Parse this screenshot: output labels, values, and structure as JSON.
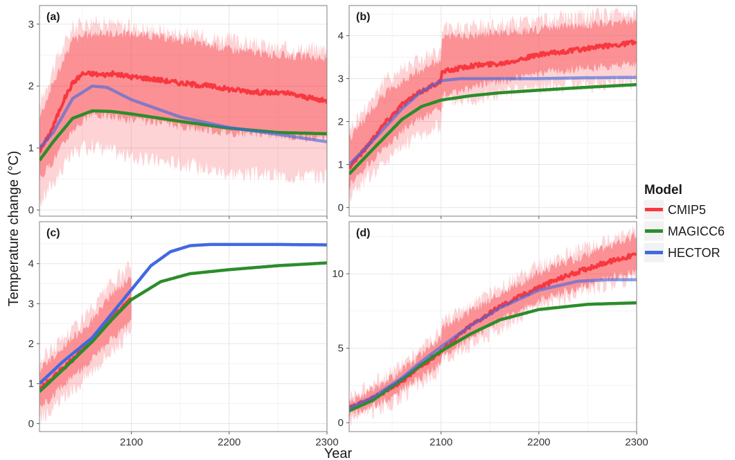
{
  "figure": {
    "xlabel": "Year",
    "ylabel": "Temperature change (°C)",
    "legend_title": "Model",
    "legend_position": "right"
  },
  "chart_data": [
    {
      "type": "line",
      "panel": "(a)",
      "xlim": [
        2006,
        2300
      ],
      "ylim": [
        -0.1,
        3.3
      ],
      "x_ticks": [
        2100,
        2200,
        2300
      ],
      "x_tick_labels": [
        "",
        "",
        ""
      ],
      "y_ticks": [
        0,
        1,
        2,
        3
      ],
      "y_tick_labels": [
        "0",
        "1",
        "2",
        "3"
      ],
      "grid": true,
      "series": [
        {
          "name": "CMIP5",
          "color": "#f8373f",
          "kind": "noisy",
          "x": [
            2006,
            2012,
            2020,
            2030,
            2040,
            2050,
            2060,
            2070,
            2080,
            2100,
            2120,
            2150,
            2180,
            2200,
            2230,
            2260,
            2300
          ],
          "values": [
            0.95,
            1.1,
            1.35,
            1.75,
            2.05,
            2.2,
            2.2,
            2.18,
            2.2,
            2.15,
            2.12,
            2.05,
            2.0,
            1.95,
            1.9,
            1.88,
            1.75
          ],
          "band": {
            "x": [
              2006,
              2020,
              2040,
              2060,
              2100,
              2150,
              2200,
              2250,
              2300
            ],
            "lower": [
              0.5,
              0.8,
              1.3,
              1.55,
              1.45,
              1.35,
              1.25,
              1.2,
              1.15
            ],
            "upper": [
              1.5,
              2.05,
              2.75,
              2.85,
              2.85,
              2.75,
              2.6,
              2.5,
              2.45
            ]
          },
          "outer_band": {
            "x": [
              2006,
              2020,
              2040,
              2060,
              2100,
              2150,
              2200,
              2250,
              2300
            ],
            "lower": [
              0.1,
              0.45,
              0.9,
              1.05,
              0.85,
              0.75,
              0.6,
              0.55,
              0.55
            ],
            "upper": [
              1.7,
              2.3,
              2.95,
              3.05,
              2.95,
              2.85,
              2.75,
              2.6,
              2.6
            ]
          }
        },
        {
          "name": "MAGICC6",
          "color": "#2b8d2b",
          "kind": "smooth",
          "x": [
            2006,
            2020,
            2040,
            2060,
            2080,
            2100,
            2150,
            2200,
            2250,
            2300
          ],
          "values": [
            0.8,
            1.1,
            1.48,
            1.6,
            1.59,
            1.55,
            1.43,
            1.32,
            1.25,
            1.23
          ]
        },
        {
          "name": "HECTOR",
          "color": "#4169e1",
          "kind": "smooth",
          "x": [
            2006,
            2020,
            2040,
            2060,
            2075,
            2100,
            2150,
            2200,
            2250,
            2300
          ],
          "values": [
            1.0,
            1.25,
            1.8,
            2.0,
            1.98,
            1.78,
            1.5,
            1.33,
            1.22,
            1.1
          ]
        }
      ]
    },
    {
      "type": "line",
      "panel": "(b)",
      "xlim": [
        2006,
        2300
      ],
      "ylim": [
        -0.2,
        4.7
      ],
      "x_ticks": [
        2100,
        2200,
        2300
      ],
      "x_tick_labels": [
        "",
        "",
        ""
      ],
      "y_ticks": [
        0,
        1,
        2,
        3,
        4
      ],
      "y_tick_labels": [
        "0",
        "1",
        "2",
        "3",
        "4"
      ],
      "grid": true,
      "series": [
        {
          "name": "CMIP5",
          "color": "#f8373f",
          "kind": "noisy",
          "x": [
            2006,
            2020,
            2040,
            2060,
            2080,
            2100,
            2101,
            2130,
            2160,
            2200,
            2250,
            2300
          ],
          "values": [
            0.95,
            1.3,
            1.9,
            2.4,
            2.7,
            2.95,
            3.15,
            3.3,
            3.35,
            3.55,
            3.7,
            3.85
          ],
          "band": {
            "x": [
              2006,
              2040,
              2070,
              2100,
              2101,
              2150,
              2200,
              2250,
              2300
            ],
            "lower": [
              0.5,
              1.35,
              1.95,
              2.3,
              2.6,
              2.9,
              3.1,
              3.25,
              3.35
            ],
            "upper": [
              1.6,
              2.6,
              3.1,
              3.45,
              3.95,
              4.05,
              4.15,
              4.25,
              4.35
            ]
          },
          "outer_band": {
            "x": [
              2006,
              2040,
              2070,
              2100,
              2101,
              2150,
              2200,
              2250,
              2300
            ],
            "lower": [
              0.3,
              1.0,
              1.6,
              1.9,
              2.45,
              2.6,
              2.8,
              2.85,
              2.95
            ],
            "upper": [
              1.8,
              2.9,
              3.4,
              3.6,
              4.15,
              4.25,
              4.35,
              4.45,
              4.55
            ]
          }
        },
        {
          "name": "MAGICC6",
          "color": "#2b8d2b",
          "kind": "smooth",
          "x": [
            2006,
            2030,
            2060,
            2080,
            2100,
            2130,
            2160,
            2200,
            2250,
            2300
          ],
          "values": [
            0.78,
            1.35,
            2.05,
            2.35,
            2.5,
            2.6,
            2.67,
            2.73,
            2.8,
            2.86
          ]
        },
        {
          "name": "HECTOR",
          "color": "#4169e1",
          "kind": "smooth",
          "x": [
            2006,
            2030,
            2060,
            2080,
            2100,
            2120,
            2150,
            2200,
            2250,
            2300
          ],
          "values": [
            1.0,
            1.55,
            2.3,
            2.7,
            2.95,
            3.0,
            3.0,
            3.0,
            3.02,
            3.03
          ]
        }
      ]
    },
    {
      "type": "line",
      "panel": "(c)",
      "xlim": [
        2006,
        2300
      ],
      "ylim": [
        -0.2,
        5.05
      ],
      "x_ticks": [
        2100,
        2200,
        2300
      ],
      "x_tick_labels": [
        "2100",
        "2200",
        "2300"
      ],
      "y_ticks": [
        0,
        1,
        2,
        3,
        4
      ],
      "y_tick_labels": [
        "0",
        "1",
        "2",
        "3",
        "4"
      ],
      "grid": true,
      "series": [
        {
          "name": "CMIP5",
          "color": "#f8373f",
          "kind": "noisy",
          "x": [
            2006,
            2020,
            2040,
            2060,
            2080,
            2100
          ],
          "values": [
            0.85,
            1.15,
            1.6,
            2.1,
            2.7,
            3.1
          ],
          "band": {
            "x": [
              2006,
              2030,
              2060,
              2080,
              2100
            ],
            "lower": [
              0.35,
              0.95,
              1.6,
              2.1,
              2.55
            ],
            "upper": [
              1.35,
              1.9,
              2.6,
              3.25,
              3.65
            ]
          },
          "outer_band": {
            "x": [
              2006,
              2030,
              2060,
              2080,
              2100
            ],
            "lower": [
              0.1,
              0.6,
              1.35,
              1.85,
              2.25
            ],
            "upper": [
              1.55,
              2.15,
              2.85,
              3.5,
              3.95
            ]
          }
        },
        {
          "name": "MAGICC6",
          "color": "#2b8d2b",
          "kind": "smooth",
          "x": [
            2006,
            2030,
            2060,
            2080,
            2100,
            2130,
            2160,
            2200,
            2250,
            2300
          ],
          "values": [
            0.8,
            1.35,
            2.05,
            2.6,
            3.1,
            3.55,
            3.75,
            3.85,
            3.95,
            4.02
          ]
        },
        {
          "name": "HECTOR",
          "color": "#4169e1",
          "kind": "smooth",
          "x": [
            2006,
            2030,
            2060,
            2080,
            2100,
            2120,
            2140,
            2160,
            2180,
            2200,
            2250,
            2300
          ],
          "values": [
            1.0,
            1.55,
            2.15,
            2.75,
            3.35,
            3.95,
            4.3,
            4.45,
            4.48,
            4.48,
            4.48,
            4.47
          ]
        }
      ]
    },
    {
      "type": "line",
      "panel": "(d)",
      "xlim": [
        2006,
        2300
      ],
      "ylim": [
        -0.6,
        13.5
      ],
      "x_ticks": [
        2100,
        2200,
        2300
      ],
      "x_tick_labels": [
        "2100",
        "2200",
        "2300"
      ],
      "y_ticks": [
        0,
        5,
        10
      ],
      "y_tick_labels": [
        "0",
        "5",
        "10"
      ],
      "grid": true,
      "series": [
        {
          "name": "CMIP5",
          "color": "#f8373f",
          "kind": "noisy",
          "x": [
            2006,
            2030,
            2060,
            2080,
            2100,
            2130,
            2160,
            2200,
            2230,
            2260,
            2300
          ],
          "values": [
            0.95,
            1.6,
            2.8,
            3.8,
            4.8,
            6.5,
            7.8,
            9.1,
            9.9,
            10.6,
            11.3
          ],
          "band": {
            "x": [
              2006,
              2050,
              2100,
              2101,
              2150,
              2200,
              2250,
              2300
            ],
            "lower": [
              0.5,
              1.7,
              4.0,
              4.4,
              6.5,
              8.2,
              9.3,
              10.2
            ],
            "upper": [
              1.4,
              3.0,
              5.7,
              6.4,
              8.2,
              10.1,
              11.3,
              12.6
            ]
          },
          "outer_band": {
            "x": [
              2006,
              2050,
              2100,
              2101,
              2150,
              2200,
              2250,
              2300
            ],
            "lower": [
              0.2,
              1.3,
              3.5,
              4.2,
              6.0,
              7.8,
              8.9,
              9.8
            ],
            "upper": [
              1.7,
              3.4,
              6.2,
              6.7,
              8.6,
              10.5,
              11.8,
              13.0
            ]
          }
        },
        {
          "name": "MAGICC6",
          "color": "#2b8d2b",
          "kind": "smooth",
          "x": [
            2006,
            2030,
            2060,
            2080,
            2100,
            2130,
            2160,
            2200,
            2250,
            2300
          ],
          "values": [
            0.8,
            1.5,
            2.9,
            3.9,
            4.8,
            5.95,
            6.9,
            7.6,
            7.95,
            8.05
          ]
        },
        {
          "name": "HECTOR",
          "color": "#4169e1",
          "kind": "smooth",
          "x": [
            2006,
            2030,
            2060,
            2080,
            2100,
            2130,
            2160,
            2200,
            2240,
            2270,
            2300
          ],
          "values": [
            1.0,
            1.7,
            3.0,
            4.1,
            5.1,
            6.5,
            7.7,
            8.9,
            9.5,
            9.6,
            9.6
          ]
        }
      ]
    }
  ],
  "legend": [
    {
      "label": "CMIP5",
      "color": "#f8373f"
    },
    {
      "label": "MAGICC6",
      "color": "#2b8d2b"
    },
    {
      "label": "HECTOR",
      "color": "#4169e1"
    }
  ]
}
